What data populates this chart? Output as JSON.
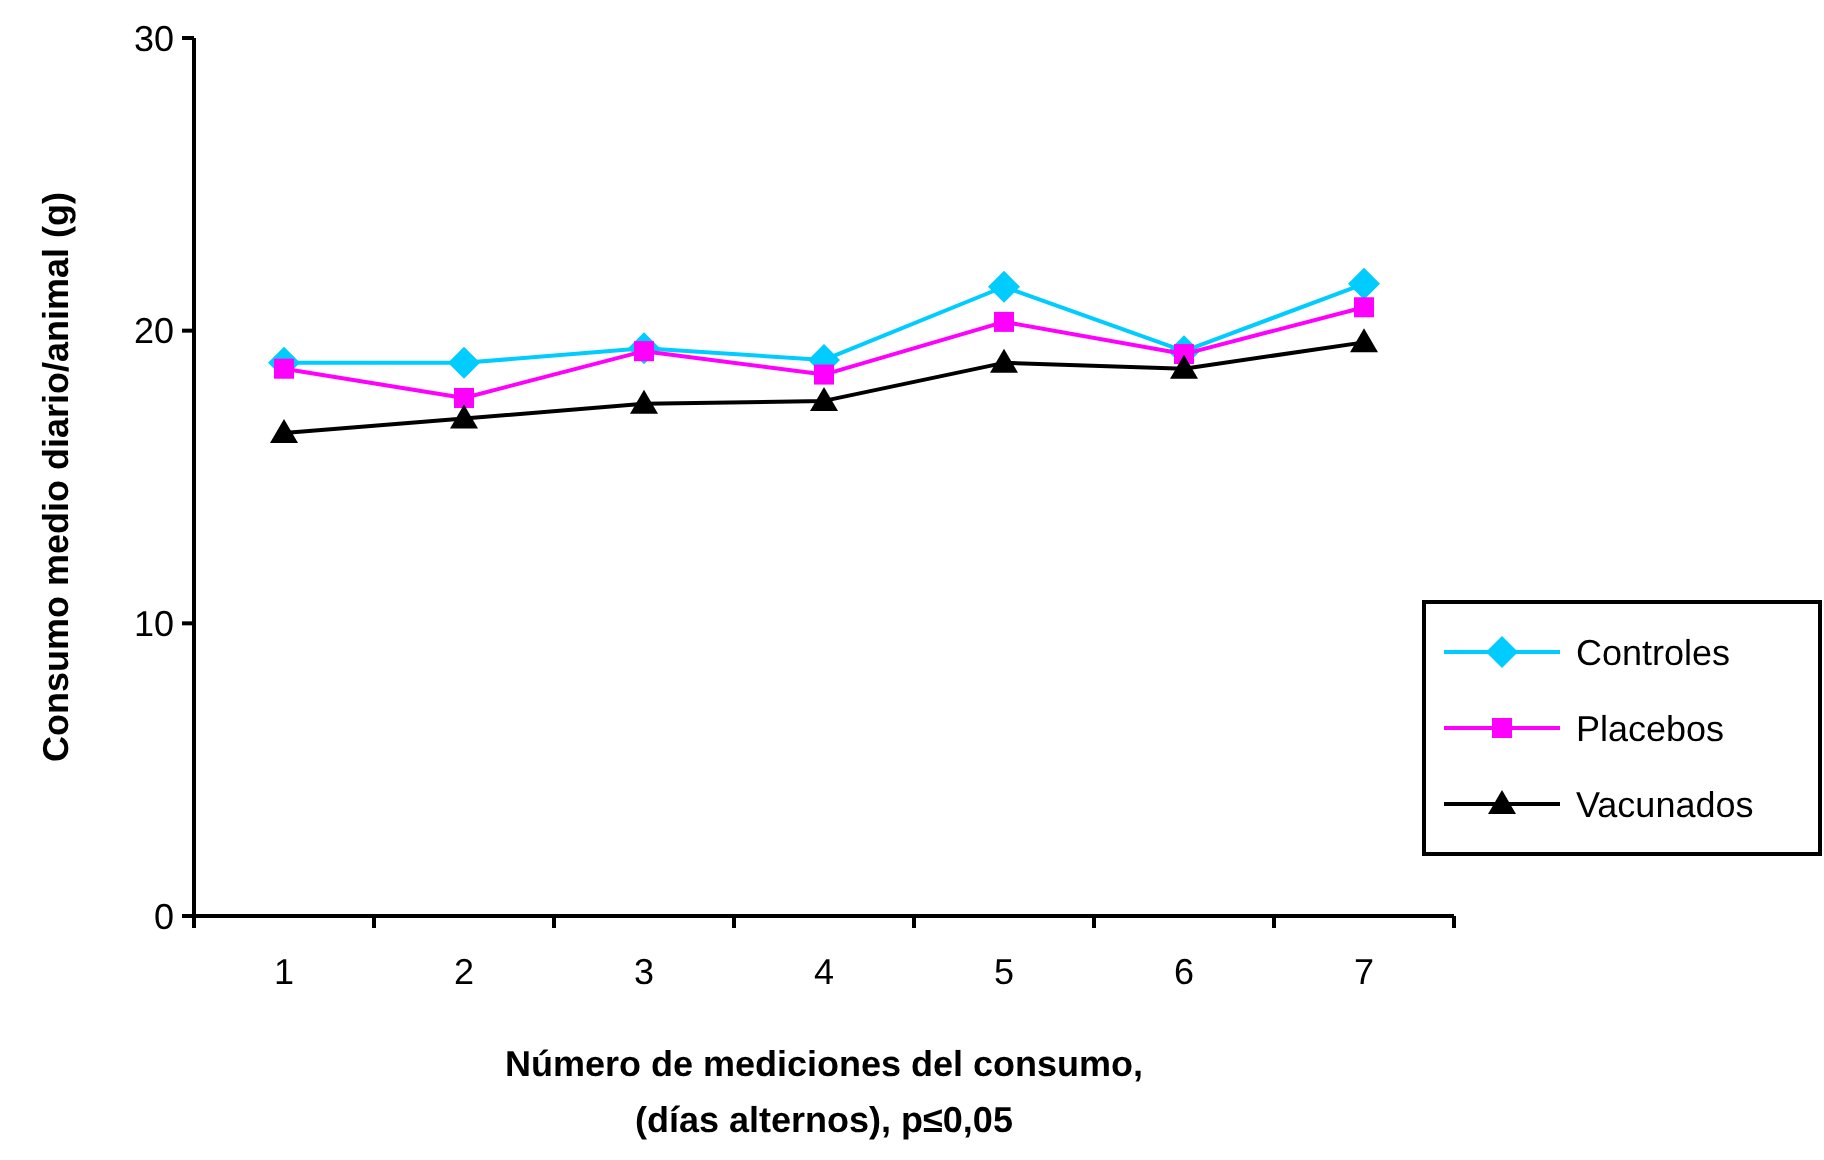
{
  "chart_data": {
    "type": "line",
    "xlabel": "Número de mediciones del consumo,\n(días alternos), p≤0,05",
    "ylabel": "Consumo medio diario/animal (g)",
    "categories": [
      "1",
      "2",
      "3",
      "4",
      "5",
      "6",
      "7"
    ],
    "ylim": [
      0,
      30
    ],
    "yticks": [
      0,
      10,
      20,
      30
    ],
    "grid": false,
    "legend": "right",
    "series": [
      {
        "name": "Controles",
        "color": "#00ccff",
        "marker": "diamond",
        "values": [
          18.9,
          18.9,
          19.4,
          19.0,
          21.5,
          19.3,
          21.6
        ]
      },
      {
        "name": "Placebos",
        "color": "#ff00ff",
        "marker": "square",
        "values": [
          18.7,
          17.7,
          19.3,
          18.5,
          20.3,
          19.2,
          20.8
        ]
      },
      {
        "name": "Vacunados",
        "color": "#000000",
        "marker": "triangle",
        "values": [
          16.5,
          17.0,
          17.5,
          17.6,
          18.9,
          18.7,
          19.6
        ]
      }
    ]
  }
}
